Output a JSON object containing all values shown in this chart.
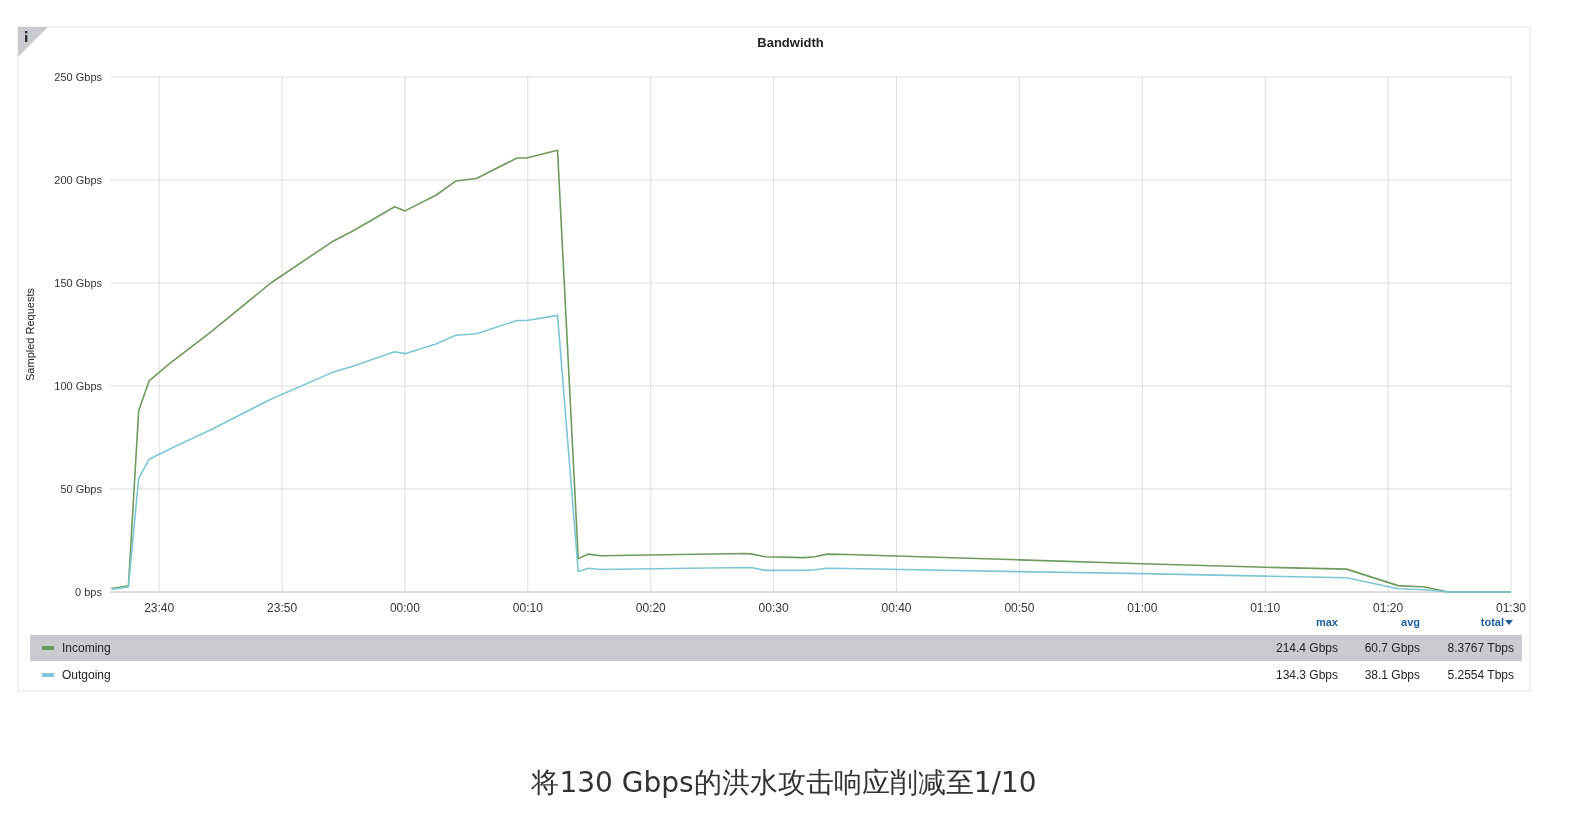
{
  "chart_data": {
    "type": "line",
    "title": "Bandwidth",
    "ylabel": "Sampled Requests",
    "x": [
      "2000-01-01T23:36:07",
      "2000-01-01T23:37:30",
      "2000-01-01T23:38:20",
      "2000-01-01T23:39:11",
      "2000-01-01T23:40:52",
      "2000-01-01T23:44:10",
      "2000-01-01T23:49:05",
      "2000-01-01T23:54:04",
      "2000-01-01T23:55:41",
      "2000-01-01T23:59:10",
      "2000-01-02T00:00:00",
      "2000-01-02T00:02:31",
      "2000-01-02T00:04:08",
      "2000-01-02T00:05:49",
      "2000-01-02T00:09:07",
      "2000-01-02T00:09:54",
      "2000-01-02T00:12:25",
      "2000-01-02T00:14:06",
      "2000-01-02T00:14:56",
      "2000-01-02T00:15:54",
      "2000-01-02T00:27:40",
      "2000-01-02T00:28:16",
      "2000-01-02T00:29:20",
      "2000-01-02T00:32:31",
      "2000-01-02T00:33:22",
      "2000-01-02T00:34:19",
      "2000-01-02T00:36:00",
      "2000-01-02T00:50:00",
      "2000-01-02T01:00:00",
      "2000-01-02T01:10:00",
      "2000-01-02T01:16:37",
      "2000-01-02T01:20:49",
      "2000-01-02T01:22:59",
      "2000-01-02T01:24:54",
      "2000-01-02T01:30:00"
    ],
    "series": [
      {
        "name": "Incoming",
        "color": "#6f9a5e",
        "values": [
          1.7,
          3,
          88,
          102.5,
          111,
          126,
          150,
          170,
          175,
          187,
          185,
          192.6,
          199.5,
          200.7,
          210.7,
          210.7,
          214.4,
          16.2,
          18.4,
          17.6,
          18.7,
          18.4,
          17.1,
          16.7,
          17.1,
          18.4,
          18.2,
          15.6,
          13.7,
          12.0,
          11.1,
          3.1,
          2.4,
          0,
          0
        ]
      },
      {
        "name": "Outgoing",
        "color": "#7ec6d6",
        "values": [
          1.2,
          2.5,
          55.2,
          64.4,
          69.4,
          78.6,
          93.6,
          106.5,
          109.5,
          116.6,
          115.7,
          120.4,
          124.6,
          125.4,
          131.8,
          131.8,
          134.3,
          10.0,
          11.5,
          10.9,
          11.9,
          11.8,
          10.5,
          10.5,
          10.8,
          11.5,
          11.4,
          9.9,
          8.9,
          7.7,
          6.9,
          1.6,
          1.1,
          0,
          0
        ]
      }
    ],
    "xlim": [
      "2000-01-01T23:36:00",
      "2000-01-02T01:30:00"
    ],
    "xticks": [
      {
        "value": "2000-01-01T23:40",
        "label": "23:40"
      },
      {
        "value": "2000-01-01T23:50",
        "label": "23:50"
      },
      {
        "value": "2000-01-02T00:00",
        "label": "00:00"
      },
      {
        "value": "2000-01-02T00:10",
        "label": "00:10"
      },
      {
        "value": "2000-01-02T00:20",
        "label": "00:20"
      },
      {
        "value": "2000-01-02T00:30",
        "label": "00:30"
      },
      {
        "value": "2000-01-02T00:40",
        "label": "00:40"
      },
      {
        "value": "2000-01-02T00:50",
        "label": "00:50"
      },
      {
        "value": "2000-01-02T01:00",
        "label": "01:00"
      },
      {
        "value": "2000-01-02T01:10",
        "label": "01:10"
      },
      {
        "value": "2000-01-02T01:20",
        "label": "01:20"
      },
      {
        "value": "2000-01-02T01:30",
        "label": "01:30"
      }
    ],
    "ylim": [
      0,
      250
    ],
    "yticks": [
      {
        "value": 0,
        "label": "0 bps"
      },
      {
        "value": 50,
        "label": "50 Gbps"
      },
      {
        "value": 100,
        "label": "100 Gbps"
      },
      {
        "value": 150,
        "label": "150 Gbps"
      },
      {
        "value": 200,
        "label": "200 Gbps"
      },
      {
        "value": 250,
        "label": "250 Gbps"
      }
    ],
    "grid": true,
    "legend": "bottom",
    "annotations": [
      "max",
      "avg",
      "total",
      "214.4 Gbps",
      "60.7 Gbps",
      "8.3767 Tbps",
      "134.3 Gbps",
      "38.1 Gbps",
      "5.2554 Tbps",
      "将130 Gbps的洪水攻击响应削减至1/10"
    ]
  }
}
